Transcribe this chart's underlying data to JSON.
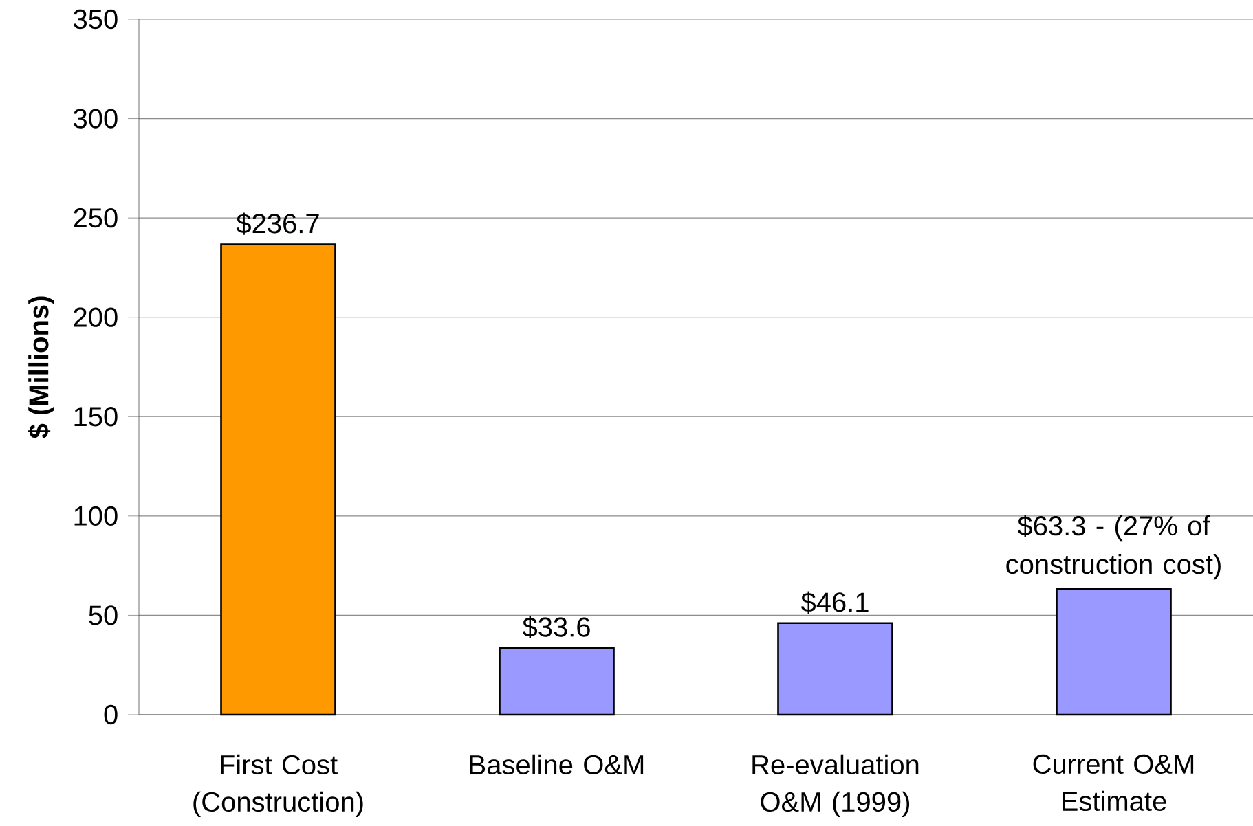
{
  "chart_data": {
    "type": "bar",
    "ylabel": "$ (Millions)",
    "categories": [
      "First Cost (Construction)",
      "Baseline O&M",
      "Re-evaluation O&M (1999)",
      "Current O&M Estimate"
    ],
    "values": [
      236.7,
      33.6,
      46.1,
      63.3
    ],
    "colors": [
      "#ff9900",
      "#9999ff",
      "#9999ff",
      "#9999ff"
    ],
    "value_labels": [
      "$236.7",
      "$33.6",
      "$46.1",
      "$63.3 - (27% of construction cost)"
    ],
    "ylim": [
      0,
      350
    ],
    "yticks": [
      0,
      50,
      100,
      150,
      200,
      250,
      300,
      350
    ],
    "grid": "y"
  }
}
